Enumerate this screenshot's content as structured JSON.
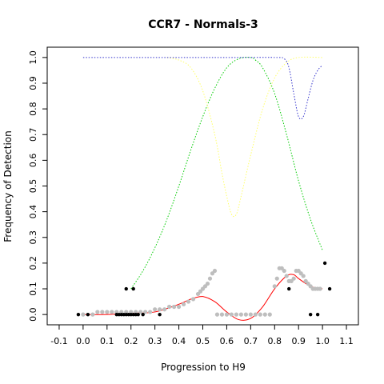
{
  "chart_data": {
    "type": "scatter",
    "title": "CCR7 - Normals-3",
    "xlabel": "Progression to H9",
    "ylabel": "Frequency of Detection",
    "xlim": [
      -0.15,
      1.15
    ],
    "ylim": [
      -0.04,
      1.04
    ],
    "x_ticks": [
      "-0.1",
      "0.0",
      "0.1",
      "0.2",
      "0.3",
      "0.4",
      "0.5",
      "0.6",
      "0.7",
      "0.8",
      "0.9",
      "1.0",
      "1.1"
    ],
    "y_ticks": [
      "0.0",
      "0.1",
      "0.2",
      "0.3",
      "0.4",
      "0.5",
      "0.6",
      "0.7",
      "0.8",
      "0.9",
      "1.0"
    ],
    "grid": false,
    "colors": {
      "red": "#ff0000",
      "green": "#00cc00",
      "yellow": "#ffff66",
      "blue": "#3333cc",
      "gray": "#bebebe",
      "black": "#000000"
    },
    "black_points": [
      {
        "x": -0.02,
        "y": 0.0
      },
      {
        "x": 0.02,
        "y": 0.0
      },
      {
        "x": 0.14,
        "y": 0.0
      },
      {
        "x": 0.15,
        "y": 0.0
      },
      {
        "x": 0.16,
        "y": 0.0
      },
      {
        "x": 0.17,
        "y": 0.0
      },
      {
        "x": 0.18,
        "y": 0.0
      },
      {
        "x": 0.19,
        "y": 0.0
      },
      {
        "x": 0.2,
        "y": 0.0
      },
      {
        "x": 0.21,
        "y": 0.0
      },
      {
        "x": 0.22,
        "y": 0.0
      },
      {
        "x": 0.23,
        "y": 0.0
      },
      {
        "x": 0.25,
        "y": 0.0
      },
      {
        "x": 0.32,
        "y": 0.0
      },
      {
        "x": 0.18,
        "y": 0.1
      },
      {
        "x": 0.21,
        "y": 0.1
      },
      {
        "x": 0.86,
        "y": 0.1
      },
      {
        "x": 0.95,
        "y": 0.0
      },
      {
        "x": 0.98,
        "y": 0.0
      },
      {
        "x": 1.01,
        "y": 0.2
      },
      {
        "x": 1.03,
        "y": 0.1
      }
    ],
    "gray_points": [
      {
        "x": 0.0,
        "y": 0.0
      },
      {
        "x": 0.04,
        "y": 0.0
      },
      {
        "x": 0.06,
        "y": 0.01
      },
      {
        "x": 0.08,
        "y": 0.01
      },
      {
        "x": 0.1,
        "y": 0.01
      },
      {
        "x": 0.12,
        "y": 0.01
      },
      {
        "x": 0.14,
        "y": 0.01
      },
      {
        "x": 0.16,
        "y": 0.01
      },
      {
        "x": 0.18,
        "y": 0.01
      },
      {
        "x": 0.2,
        "y": 0.01
      },
      {
        "x": 0.22,
        "y": 0.01
      },
      {
        "x": 0.24,
        "y": 0.01
      },
      {
        "x": 0.26,
        "y": 0.01
      },
      {
        "x": 0.28,
        "y": 0.01
      },
      {
        "x": 0.3,
        "y": 0.02
      },
      {
        "x": 0.32,
        "y": 0.02
      },
      {
        "x": 0.34,
        "y": 0.02
      },
      {
        "x": 0.36,
        "y": 0.03
      },
      {
        "x": 0.38,
        "y": 0.03
      },
      {
        "x": 0.4,
        "y": 0.03
      },
      {
        "x": 0.42,
        "y": 0.04
      },
      {
        "x": 0.44,
        "y": 0.05
      },
      {
        "x": 0.46,
        "y": 0.06
      },
      {
        "x": 0.48,
        "y": 0.08
      },
      {
        "x": 0.49,
        "y": 0.09
      },
      {
        "x": 0.5,
        "y": 0.1
      },
      {
        "x": 0.51,
        "y": 0.11
      },
      {
        "x": 0.52,
        "y": 0.12
      },
      {
        "x": 0.53,
        "y": 0.14
      },
      {
        "x": 0.54,
        "y": 0.16
      },
      {
        "x": 0.55,
        "y": 0.17
      },
      {
        "x": 0.56,
        "y": 0.0
      },
      {
        "x": 0.58,
        "y": 0.0
      },
      {
        "x": 0.6,
        "y": 0.0
      },
      {
        "x": 0.62,
        "y": 0.0
      },
      {
        "x": 0.64,
        "y": 0.0
      },
      {
        "x": 0.66,
        "y": 0.0
      },
      {
        "x": 0.68,
        "y": 0.0
      },
      {
        "x": 0.7,
        "y": 0.0
      },
      {
        "x": 0.72,
        "y": 0.0
      },
      {
        "x": 0.74,
        "y": 0.0
      },
      {
        "x": 0.76,
        "y": 0.0
      },
      {
        "x": 0.78,
        "y": 0.0
      },
      {
        "x": 0.8,
        "y": 0.11
      },
      {
        "x": 0.81,
        "y": 0.14
      },
      {
        "x": 0.82,
        "y": 0.18
      },
      {
        "x": 0.83,
        "y": 0.18
      },
      {
        "x": 0.84,
        "y": 0.17
      },
      {
        "x": 0.85,
        "y": 0.15
      },
      {
        "x": 0.86,
        "y": 0.13
      },
      {
        "x": 0.87,
        "y": 0.13
      },
      {
        "x": 0.88,
        "y": 0.14
      },
      {
        "x": 0.89,
        "y": 0.17
      },
      {
        "x": 0.9,
        "y": 0.17
      },
      {
        "x": 0.91,
        "y": 0.16
      },
      {
        "x": 0.92,
        "y": 0.15
      },
      {
        "x": 0.93,
        "y": 0.13
      },
      {
        "x": 0.94,
        "y": 0.12
      },
      {
        "x": 0.95,
        "y": 0.11
      },
      {
        "x": 0.96,
        "y": 0.1
      },
      {
        "x": 0.97,
        "y": 0.1
      },
      {
        "x": 0.98,
        "y": 0.1
      },
      {
        "x": 0.99,
        "y": 0.1
      }
    ],
    "series": [
      {
        "color": "red",
        "style": "solid",
        "x": [
          0.0,
          0.1,
          0.2,
          0.3,
          0.4,
          0.45,
          0.5,
          0.55,
          0.6,
          0.65,
          0.7,
          0.75,
          0.8,
          0.85,
          0.88,
          0.9,
          0.95,
          1.0
        ],
        "y": [
          0.0,
          0.0,
          0.005,
          0.01,
          0.04,
          0.06,
          0.07,
          0.05,
          0.01,
          -0.02,
          -0.015,
          0.03,
          0.1,
          0.15,
          0.155,
          0.14,
          0.11,
          0.1
        ]
      },
      {
        "color": "green",
        "style": "dotted",
        "x": [
          0.2,
          0.25,
          0.3,
          0.35,
          0.4,
          0.45,
          0.5,
          0.55,
          0.6,
          0.65,
          0.7,
          0.72,
          0.75,
          0.8,
          0.85,
          0.9,
          0.95,
          1.0
        ],
        "y": [
          0.1,
          0.17,
          0.26,
          0.37,
          0.5,
          0.64,
          0.77,
          0.88,
          0.96,
          0.995,
          1.0,
          0.99,
          0.96,
          0.86,
          0.7,
          0.52,
          0.37,
          0.25
        ]
      },
      {
        "color": "yellow",
        "style": "dotted",
        "x": [
          0.35,
          0.4,
          0.45,
          0.5,
          0.55,
          0.58,
          0.6,
          0.62,
          0.64,
          0.66,
          0.7,
          0.75,
          0.8,
          0.85,
          0.9,
          1.0
        ],
        "y": [
          1.0,
          0.99,
          0.96,
          0.87,
          0.7,
          0.55,
          0.46,
          0.39,
          0.39,
          0.46,
          0.62,
          0.8,
          0.92,
          0.98,
          1.0,
          1.0
        ]
      },
      {
        "color": "blue",
        "style": "dotted",
        "x": [
          0.0,
          0.2,
          0.4,
          0.6,
          0.8,
          0.84,
          0.86,
          0.88,
          0.9,
          0.92,
          0.94,
          0.96,
          0.98,
          1.0
        ],
        "y": [
          1.0,
          1.0,
          1.0,
          1.0,
          1.0,
          0.995,
          0.96,
          0.86,
          0.77,
          0.77,
          0.84,
          0.91,
          0.95,
          0.97
        ]
      }
    ]
  }
}
